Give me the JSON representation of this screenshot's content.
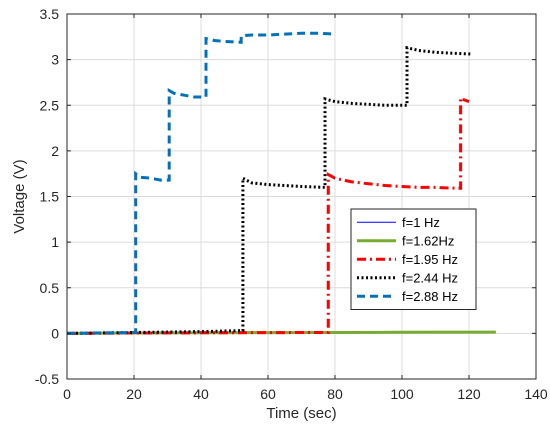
{
  "chart_data": {
    "type": "line",
    "title": "",
    "xlabel": "Time (sec)",
    "ylabel": "Voltage (V)",
    "xlim": [
      0,
      140
    ],
    "ylim": [
      -0.5,
      3.5
    ],
    "xticks": [
      0,
      20,
      40,
      60,
      80,
      100,
      120,
      140
    ],
    "yticks": [
      -0.5,
      0,
      0.5,
      1,
      1.5,
      2,
      2.5,
      3,
      3.5
    ],
    "xtick_labels": [
      "0",
      "20",
      "40",
      "60",
      "80",
      "100",
      "120",
      "140"
    ],
    "ytick_labels": [
      "-0.5",
      "0",
      "0.5",
      "1",
      "1.5",
      "2",
      "2.5",
      "3",
      "3.5"
    ],
    "grid": true,
    "legend_position": "center-right",
    "series": [
      {
        "name": "f=1 Hz",
        "color": "#0000ff",
        "style": "solid",
        "width": "thin",
        "x": [
          0,
          128
        ],
        "y": [
          0,
          0.01
        ]
      },
      {
        "name": "f=1.62Hz",
        "color": "#77ac30",
        "style": "solid",
        "width": "thick",
        "x": [
          0,
          20,
          40,
          60,
          80,
          100,
          128
        ],
        "y": [
          0,
          0.004,
          0.006,
          0.008,
          0.01,
          0.012,
          0.014
        ]
      },
      {
        "name": "f=1.95 Hz",
        "color": "#ff0000",
        "style": "dashdot",
        "width": "thick",
        "x": [
          0,
          20,
          40,
          60,
          78,
          78,
          80,
          85,
          90,
          95,
          100,
          105,
          110,
          116.5,
          117.5,
          117.5,
          118.5,
          120
        ],
        "y": [
          0,
          0.004,
          0.006,
          0.008,
          0.01,
          1.74,
          1.7,
          1.66,
          1.64,
          1.62,
          1.61,
          1.6,
          1.6,
          1.59,
          1.59,
          2.58,
          2.56,
          2.54
        ]
      },
      {
        "name": "f=2.44 Hz",
        "color": "#000000",
        "style": "dotted",
        "width": "thick",
        "x": [
          0,
          20,
          40,
          52.5,
          52.5,
          55,
          60,
          65,
          70,
          77,
          77,
          80,
          85,
          90,
          95,
          101.5,
          101.5,
          105,
          110,
          115,
          121
        ],
        "y": [
          0,
          0.01,
          0.02,
          0.03,
          1.7,
          1.65,
          1.63,
          1.62,
          1.61,
          1.6,
          2.57,
          2.54,
          2.52,
          2.51,
          2.5,
          2.5,
          3.13,
          3.1,
          3.08,
          3.07,
          3.06
        ]
      },
      {
        "name": "f=2.88 Hz",
        "color": "#0072bd",
        "style": "dashed",
        "width": "thick",
        "x": [
          0,
          10,
          20.5,
          20.5,
          22,
          25,
          28,
          30.5,
          30.5,
          32,
          35,
          38,
          41.5,
          41.5,
          44,
          47,
          52,
          52,
          55,
          60,
          65,
          70,
          75,
          80
        ],
        "y": [
          0,
          0.005,
          0.01,
          1.75,
          1.71,
          1.7,
          1.68,
          1.68,
          2.66,
          2.63,
          2.61,
          2.59,
          2.59,
          3.23,
          3.21,
          3.2,
          3.19,
          3.26,
          3.27,
          3.27,
          3.28,
          3.29,
          3.29,
          3.28
        ]
      }
    ]
  }
}
